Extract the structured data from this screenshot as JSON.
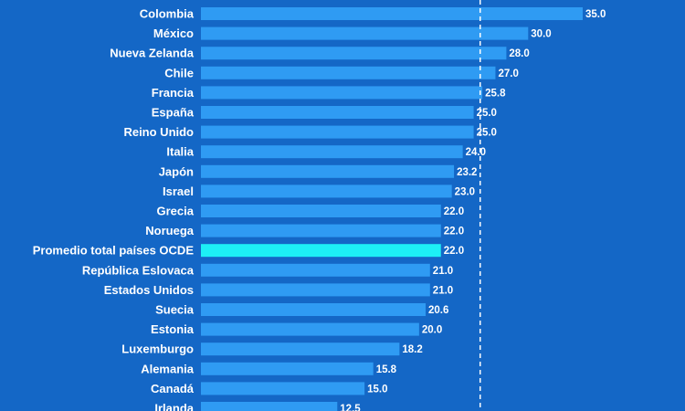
{
  "chart_data": {
    "type": "bar",
    "orientation": "horizontal",
    "categories": [
      "Colombia",
      "México",
      "Nueva Zelanda",
      "Chile",
      "Francia",
      "España",
      "Reino Unido",
      "Italia",
      "Japón",
      "Israel",
      "Grecia",
      "Noruega",
      "Promedio total países OCDE",
      "República Eslovaca",
      "Estados Unidos",
      "Suecia",
      "Estonia",
      "Luxemburgo",
      "Alemania",
      "Canadá",
      "Irlanda"
    ],
    "values": [
      35.0,
      30.0,
      28.0,
      27.0,
      25.8,
      25.0,
      25.0,
      24.0,
      23.2,
      23.0,
      22.0,
      22.0,
      22.0,
      21.0,
      21.0,
      20.6,
      20.0,
      18.2,
      15.8,
      15.0,
      12.5
    ],
    "value_labels": [
      "35.0",
      "30.0",
      "28.0",
      "27.0",
      "25.8",
      "25.0",
      "25.0",
      "24.0",
      "23.2",
      "23.0",
      "22.0",
      "22.0",
      "22.0",
      "21.0",
      "21.0",
      "20.6",
      "20.0",
      "18.2",
      "15.8",
      "15.0",
      "12.5"
    ],
    "highlight_category": "Promedio total países OCDE",
    "reference_line_value": 25.6,
    "reference_line_style": "dashed",
    "xlim": [
      0,
      35.0
    ],
    "grid": false,
    "legend": "none",
    "title": "",
    "xlabel": "",
    "ylabel": ""
  },
  "colors": {
    "background": "#1467c6",
    "bar": "#2f9bf3",
    "bar_highlight": "#1df0f6",
    "text": "#ffffff",
    "reference_line": "#ffffff"
  }
}
